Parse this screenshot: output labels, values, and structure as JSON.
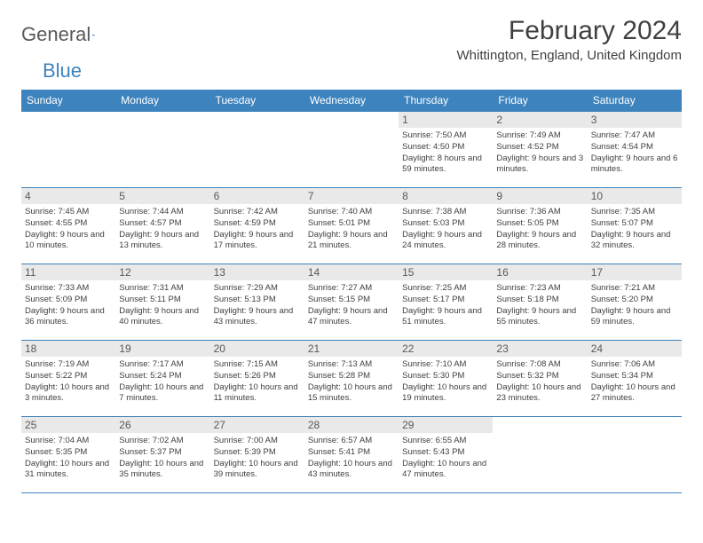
{
  "logo": {
    "part1": "General",
    "part2": "Blue"
  },
  "title": "February 2024",
  "location": "Whittington, England, United Kingdom",
  "colors": {
    "header_bg": "#3d83bd",
    "header_text": "#ffffff",
    "daynum_bg": "#e9e9e9",
    "text": "#404040",
    "border": "#3d83bd"
  },
  "day_names": [
    "Sunday",
    "Monday",
    "Tuesday",
    "Wednesday",
    "Thursday",
    "Friday",
    "Saturday"
  ],
  "weeks": [
    [
      {
        "empty": true
      },
      {
        "empty": true
      },
      {
        "empty": true
      },
      {
        "empty": true
      },
      {
        "num": "1",
        "sunrise": "Sunrise: 7:50 AM",
        "sunset": "Sunset: 4:50 PM",
        "daylight": "Daylight: 8 hours and 59 minutes."
      },
      {
        "num": "2",
        "sunrise": "Sunrise: 7:49 AM",
        "sunset": "Sunset: 4:52 PM",
        "daylight": "Daylight: 9 hours and 3 minutes."
      },
      {
        "num": "3",
        "sunrise": "Sunrise: 7:47 AM",
        "sunset": "Sunset: 4:54 PM",
        "daylight": "Daylight: 9 hours and 6 minutes."
      }
    ],
    [
      {
        "num": "4",
        "sunrise": "Sunrise: 7:45 AM",
        "sunset": "Sunset: 4:55 PM",
        "daylight": "Daylight: 9 hours and 10 minutes."
      },
      {
        "num": "5",
        "sunrise": "Sunrise: 7:44 AM",
        "sunset": "Sunset: 4:57 PM",
        "daylight": "Daylight: 9 hours and 13 minutes."
      },
      {
        "num": "6",
        "sunrise": "Sunrise: 7:42 AM",
        "sunset": "Sunset: 4:59 PM",
        "daylight": "Daylight: 9 hours and 17 minutes."
      },
      {
        "num": "7",
        "sunrise": "Sunrise: 7:40 AM",
        "sunset": "Sunset: 5:01 PM",
        "daylight": "Daylight: 9 hours and 21 minutes."
      },
      {
        "num": "8",
        "sunrise": "Sunrise: 7:38 AM",
        "sunset": "Sunset: 5:03 PM",
        "daylight": "Daylight: 9 hours and 24 minutes."
      },
      {
        "num": "9",
        "sunrise": "Sunrise: 7:36 AM",
        "sunset": "Sunset: 5:05 PM",
        "daylight": "Daylight: 9 hours and 28 minutes."
      },
      {
        "num": "10",
        "sunrise": "Sunrise: 7:35 AM",
        "sunset": "Sunset: 5:07 PM",
        "daylight": "Daylight: 9 hours and 32 minutes."
      }
    ],
    [
      {
        "num": "11",
        "sunrise": "Sunrise: 7:33 AM",
        "sunset": "Sunset: 5:09 PM",
        "daylight": "Daylight: 9 hours and 36 minutes."
      },
      {
        "num": "12",
        "sunrise": "Sunrise: 7:31 AM",
        "sunset": "Sunset: 5:11 PM",
        "daylight": "Daylight: 9 hours and 40 minutes."
      },
      {
        "num": "13",
        "sunrise": "Sunrise: 7:29 AM",
        "sunset": "Sunset: 5:13 PM",
        "daylight": "Daylight: 9 hours and 43 minutes."
      },
      {
        "num": "14",
        "sunrise": "Sunrise: 7:27 AM",
        "sunset": "Sunset: 5:15 PM",
        "daylight": "Daylight: 9 hours and 47 minutes."
      },
      {
        "num": "15",
        "sunrise": "Sunrise: 7:25 AM",
        "sunset": "Sunset: 5:17 PM",
        "daylight": "Daylight: 9 hours and 51 minutes."
      },
      {
        "num": "16",
        "sunrise": "Sunrise: 7:23 AM",
        "sunset": "Sunset: 5:18 PM",
        "daylight": "Daylight: 9 hours and 55 minutes."
      },
      {
        "num": "17",
        "sunrise": "Sunrise: 7:21 AM",
        "sunset": "Sunset: 5:20 PM",
        "daylight": "Daylight: 9 hours and 59 minutes."
      }
    ],
    [
      {
        "num": "18",
        "sunrise": "Sunrise: 7:19 AM",
        "sunset": "Sunset: 5:22 PM",
        "daylight": "Daylight: 10 hours and 3 minutes."
      },
      {
        "num": "19",
        "sunrise": "Sunrise: 7:17 AM",
        "sunset": "Sunset: 5:24 PM",
        "daylight": "Daylight: 10 hours and 7 minutes."
      },
      {
        "num": "20",
        "sunrise": "Sunrise: 7:15 AM",
        "sunset": "Sunset: 5:26 PM",
        "daylight": "Daylight: 10 hours and 11 minutes."
      },
      {
        "num": "21",
        "sunrise": "Sunrise: 7:13 AM",
        "sunset": "Sunset: 5:28 PM",
        "daylight": "Daylight: 10 hours and 15 minutes."
      },
      {
        "num": "22",
        "sunrise": "Sunrise: 7:10 AM",
        "sunset": "Sunset: 5:30 PM",
        "daylight": "Daylight: 10 hours and 19 minutes."
      },
      {
        "num": "23",
        "sunrise": "Sunrise: 7:08 AM",
        "sunset": "Sunset: 5:32 PM",
        "daylight": "Daylight: 10 hours and 23 minutes."
      },
      {
        "num": "24",
        "sunrise": "Sunrise: 7:06 AM",
        "sunset": "Sunset: 5:34 PM",
        "daylight": "Daylight: 10 hours and 27 minutes."
      }
    ],
    [
      {
        "num": "25",
        "sunrise": "Sunrise: 7:04 AM",
        "sunset": "Sunset: 5:35 PM",
        "daylight": "Daylight: 10 hours and 31 minutes."
      },
      {
        "num": "26",
        "sunrise": "Sunrise: 7:02 AM",
        "sunset": "Sunset: 5:37 PM",
        "daylight": "Daylight: 10 hours and 35 minutes."
      },
      {
        "num": "27",
        "sunrise": "Sunrise: 7:00 AM",
        "sunset": "Sunset: 5:39 PM",
        "daylight": "Daylight: 10 hours and 39 minutes."
      },
      {
        "num": "28",
        "sunrise": "Sunrise: 6:57 AM",
        "sunset": "Sunset: 5:41 PM",
        "daylight": "Daylight: 10 hours and 43 minutes."
      },
      {
        "num": "29",
        "sunrise": "Sunrise: 6:55 AM",
        "sunset": "Sunset: 5:43 PM",
        "daylight": "Daylight: 10 hours and 47 minutes."
      },
      {
        "empty": true
      },
      {
        "empty": true
      }
    ]
  ]
}
